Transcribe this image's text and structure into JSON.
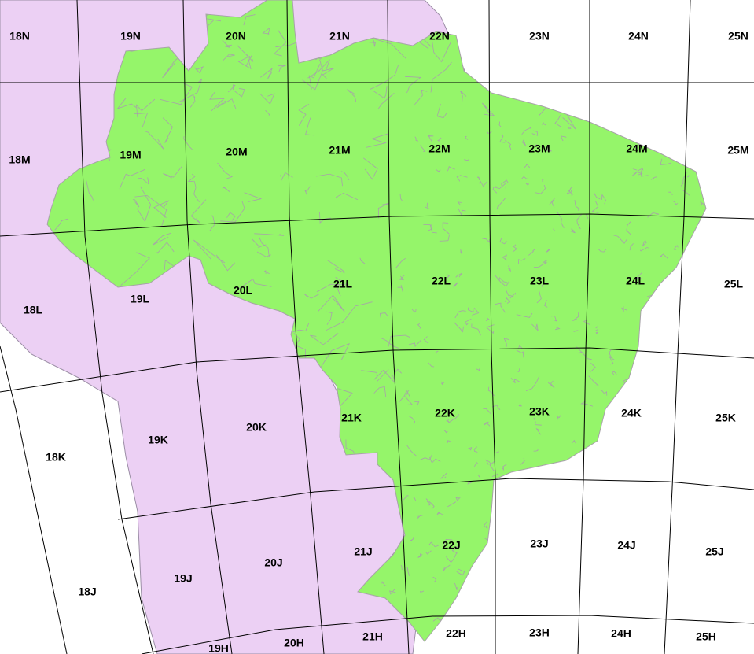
{
  "map": {
    "colors": {
      "background": "#ffffff",
      "neighbors_fill": "#ecd0f4",
      "brazil_fill": "#95f56a",
      "municipal_lines": "#a7a3a8",
      "grid_lines": "#000000",
      "label_color": "#000000"
    },
    "zone_labels": [
      "18N",
      "19N",
      "20N",
      "21N",
      "22N",
      "23N",
      "24N",
      "25N",
      "18M",
      "19M",
      "20M",
      "21M",
      "22M",
      "23M",
      "24M",
      "25M",
      "18L",
      "19L",
      "20L",
      "21L",
      "22L",
      "23L",
      "24L",
      "25L",
      "18K",
      "19K",
      "20K",
      "21K",
      "22K",
      "23K",
      "24K",
      "25K",
      "18J",
      "19J",
      "20J",
      "21J",
      "22J",
      "23J",
      "24J",
      "25J",
      "19H",
      "20H",
      "21H",
      "22H",
      "23H",
      "24H",
      "25H"
    ]
  }
}
